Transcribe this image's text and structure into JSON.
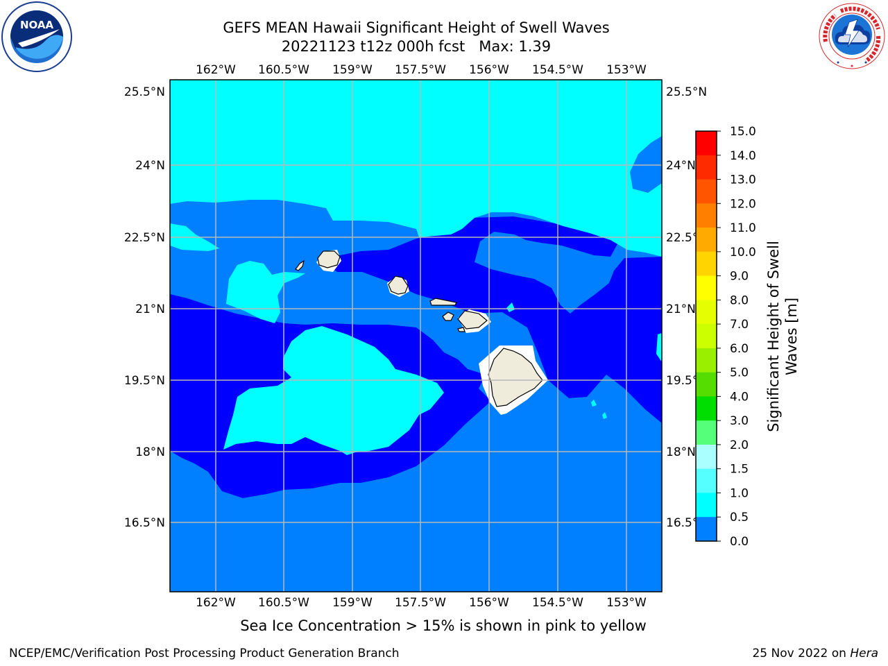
{
  "title": {
    "line1": "GEFS MEAN Hawaii Significant Height of Swell Waves",
    "line2": "20221123 t12z 000h fcst   Max: 1.39"
  },
  "logos": {
    "left": "noaa-logo",
    "left_text": "NOAA",
    "right": "national-weather-service-logo"
  },
  "map": {
    "lon_labels": [
      "162°W",
      "160.5°W",
      "159°W",
      "157.5°W",
      "156°W",
      "154.5°W",
      "153°W"
    ],
    "lat_labels": [
      "25.5°N",
      "24°N",
      "22.5°N",
      "21°N",
      "19.5°N",
      "18°N",
      "16.5°N"
    ],
    "colors": {
      "band_0_0_5": "#0000ff",
      "band_0_5_1_0": "#0080ff",
      "band_1_0_1_5": "#00ffff",
      "land": "#efecdc",
      "grid": "#b8b8b8"
    }
  },
  "colorbar": {
    "label": "Significant Height of Swell\nWaves [m]",
    "ticks": [
      "15.0",
      "14.0",
      "13.0",
      "12.0",
      "11.0",
      "10.0",
      "9.0",
      "8.0",
      "7.0",
      "6.0",
      "5.0",
      "4.0",
      "3.0",
      "2.0",
      "1.5",
      "1.0",
      "0.5",
      "0.0"
    ],
    "colors": [
      "#ff0000",
      "#ff2b00",
      "#ff5500",
      "#ff8000",
      "#ffaa00",
      "#ffd400",
      "#ffff00",
      "#e6ff00",
      "#ccff00",
      "#9aef00",
      "#55dd00",
      "#00dd00",
      "#55ff77",
      "#aaffff",
      "#55ffff",
      "#00ffff",
      "#0080ff",
      "#0000ff"
    ]
  },
  "footnote": "Sea Ice Concentration > 15% is shown in pink to yellow",
  "credit": "NCEP/EMC/Verification Post Processing Product Generation Branch",
  "date": "25 Nov 2022 on",
  "date_host": "Hera"
}
